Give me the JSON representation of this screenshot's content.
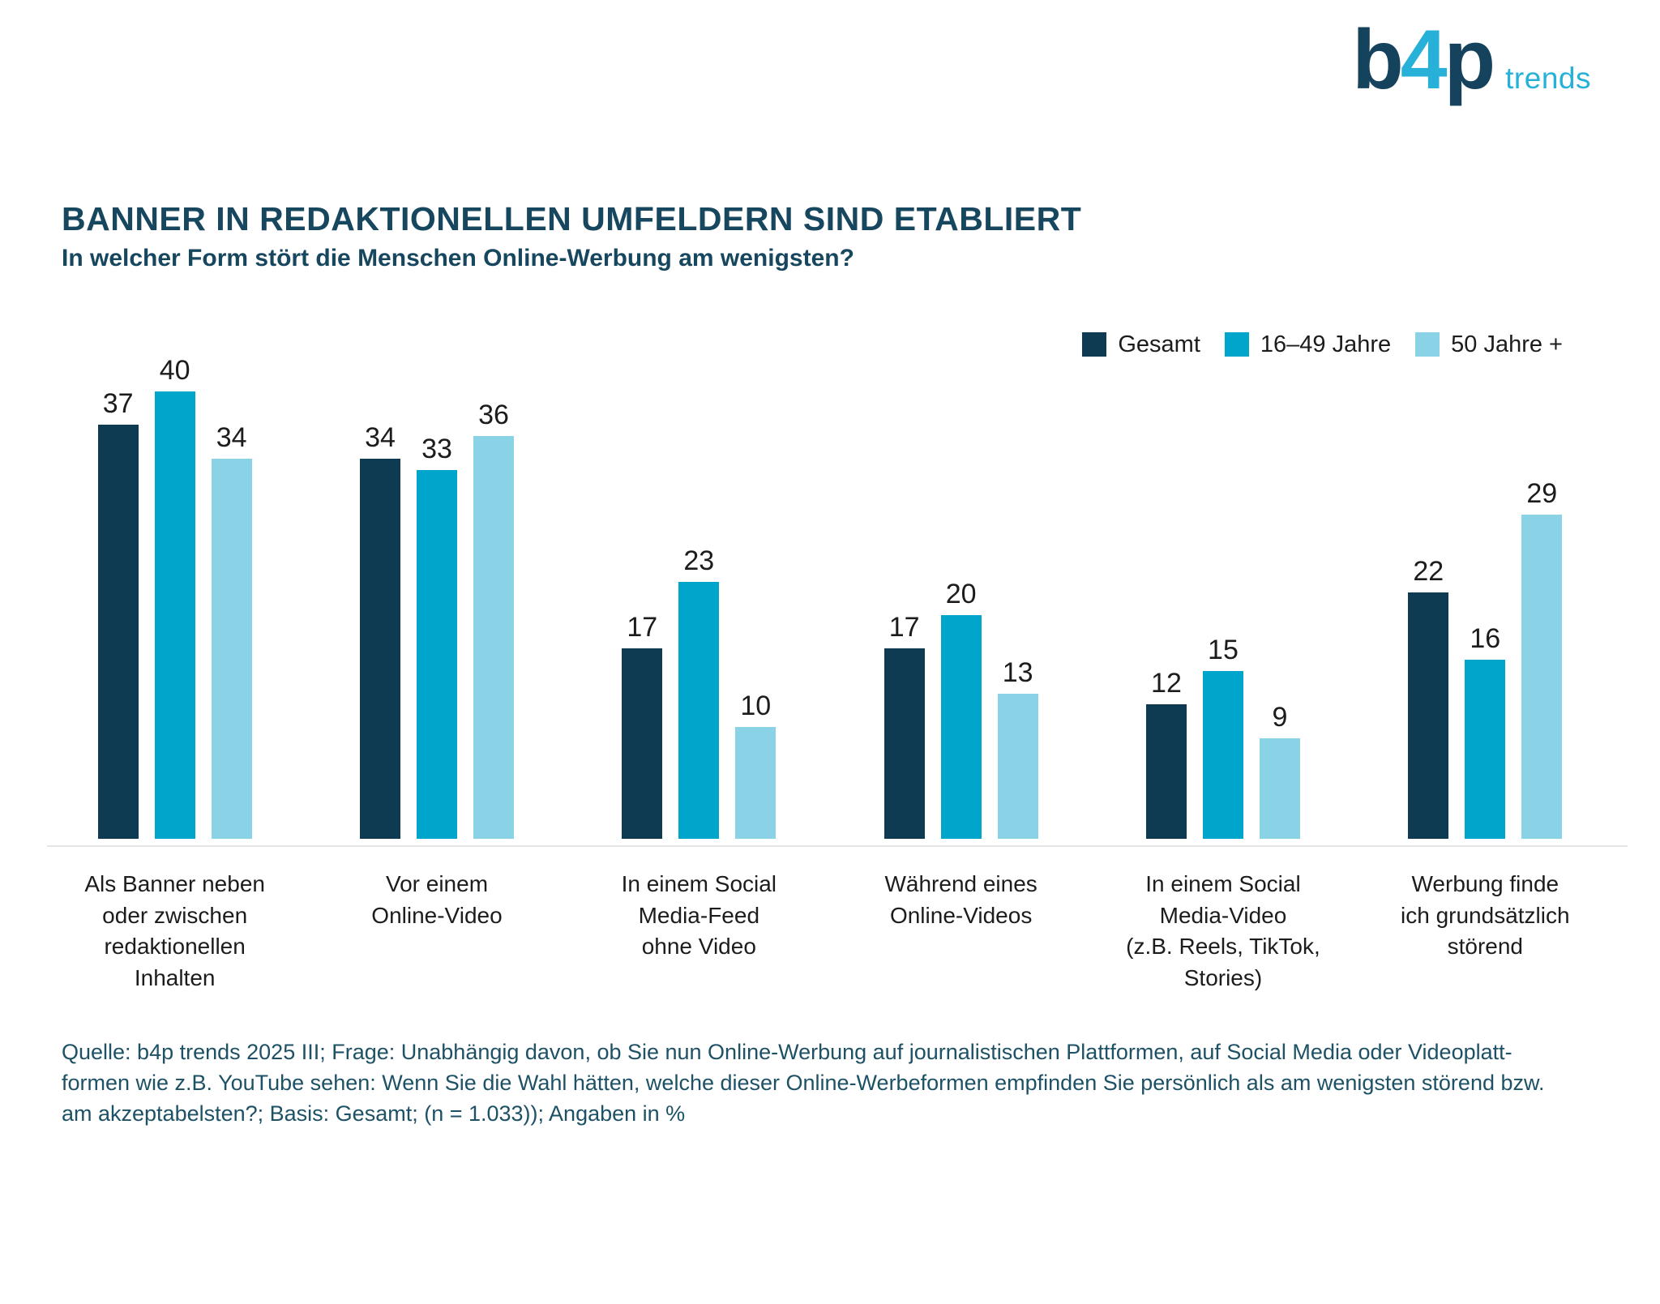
{
  "brand": {
    "logo_b": "b",
    "logo_4": "4",
    "logo_p": "p",
    "logo_suffix": "trends",
    "navy": "#15425c",
    "cyan": "#27b0d8"
  },
  "header": {
    "title": "BANNER IN REDAKTIONELLEN UMFELDERN SIND ETABLIERT",
    "subtitle": "In welcher Form stört die Menschen Online-Werbung am wenigsten?"
  },
  "legend": [
    {
      "label": "Gesamt",
      "color": "#0e3a52"
    },
    {
      "label": "16–49 Jahre",
      "color": "#00a5cb"
    },
    {
      "label": "50 Jahre +",
      "color": "#8ad2e6"
    }
  ],
  "chart_data": {
    "type": "bar",
    "title": "BANNER IN REDAKTIONELLEN UMFELDERN SIND ETABLIERT",
    "subtitle": "In welcher Form stört die Menschen Online-Werbung am wenigsten?",
    "unit": "%",
    "ylim": [
      0,
      40
    ],
    "grid": false,
    "legend_position": "top-right",
    "categories": [
      "Als Banner neben\noder zwischen\nredaktionellen\nInhalten",
      "Vor einem\nOnline-Video",
      "In einem Social\nMedia-Feed\nohne Video",
      "Während eines\nOnline-Videos",
      "In einem Social\nMedia-Video\n(z.B. Reels, TikTok,\nStories)",
      "Werbung finde\nich grundsätzlich\nstörend"
    ],
    "series": [
      {
        "name": "Gesamt",
        "color": "#0e3a52",
        "values": [
          37,
          34,
          17,
          17,
          12,
          22
        ]
      },
      {
        "name": "16–49 Jahre",
        "color": "#00a5cb",
        "values": [
          40,
          33,
          23,
          20,
          15,
          16
        ]
      },
      {
        "name": "50 Jahre +",
        "color": "#8ad2e6",
        "values": [
          34,
          36,
          10,
          13,
          9,
          29
        ]
      }
    ]
  },
  "footer": {
    "lines": [
      "Quelle: b4p trends 2025 III; Frage: Unabhängig davon, ob Sie nun Online-Werbung auf journalistischen Plattformen, auf Social Media oder Videoplatt-",
      "formen wie z.B. YouTube sehen: Wenn Sie die Wahl hätten, welche dieser Online-Werbeformen empfinden Sie persönlich als am wenigsten störend bzw.",
      "am akzeptabelsten?; Basis: Gesamt; (n = 1.033)); Angaben in %"
    ]
  }
}
